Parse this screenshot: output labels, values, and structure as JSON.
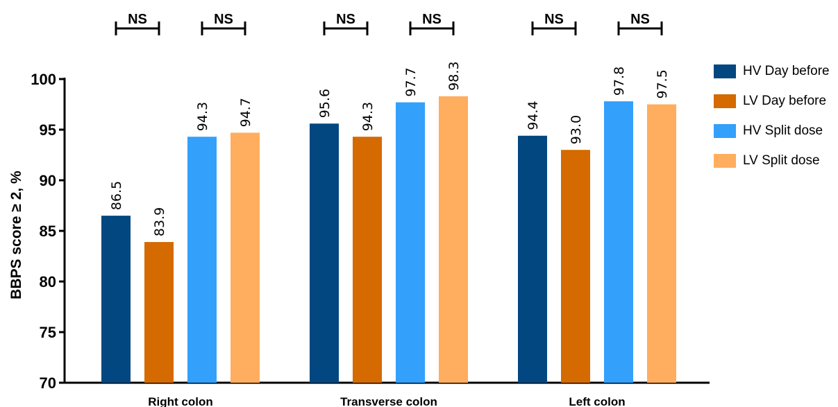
{
  "chart_data": {
    "type": "bar",
    "categories": [
      "Right colon",
      "Transverse colon",
      "Left colon"
    ],
    "series": [
      {
        "name": "HV Day before",
        "color": "#034780",
        "values": [
          86.5,
          95.6,
          94.4
        ]
      },
      {
        "name": "LV Day before",
        "color": "#D46A00",
        "values": [
          83.9,
          94.3,
          93.0
        ]
      },
      {
        "name": "HV Split dose",
        "color": "#33A0FB",
        "values": [
          94.3,
          97.7,
          97.8
        ]
      },
      {
        "name": "LV Split dose",
        "color": "#FFAD5E",
        "values": [
          94.7,
          98.3,
          97.5
        ]
      }
    ],
    "data_labels": [
      [
        "86.5",
        "95.6",
        "94.4"
      ],
      [
        "83.9",
        "94.3",
        "93.0"
      ],
      [
        "94.3",
        "97.7",
        "97.8"
      ],
      [
        "94.7",
        "98.3",
        "97.5"
      ]
    ],
    "title": "",
    "xlabel": "",
    "ylabel": "BBPS score ≥ 2, %",
    "ylim": [
      70,
      100
    ],
    "yticks": [
      70,
      75,
      80,
      85,
      90,
      95,
      100
    ],
    "ytick_labels": [
      "70",
      "75",
      "80",
      "85",
      "90",
      "95",
      "100"
    ],
    "grid": false,
    "legend_position": "right",
    "significance": [
      {
        "category": "Right colon",
        "pair": [
          "HV Day before",
          "LV Day before"
        ],
        "label": "NS"
      },
      {
        "category": "Right colon",
        "pair": [
          "HV Split dose",
          "LV Split dose"
        ],
        "label": "NS"
      },
      {
        "category": "Transverse colon",
        "pair": [
          "HV Day before",
          "LV Day before"
        ],
        "label": "NS"
      },
      {
        "category": "Transverse colon",
        "pair": [
          "HV Split dose",
          "LV Split dose"
        ],
        "label": "NS"
      },
      {
        "category": "Left colon",
        "pair": [
          "HV Day before",
          "LV Day before"
        ],
        "label": "NS"
      },
      {
        "category": "Left colon",
        "pair": [
          "HV Split dose",
          "LV Split dose"
        ],
        "label": "NS"
      }
    ]
  }
}
